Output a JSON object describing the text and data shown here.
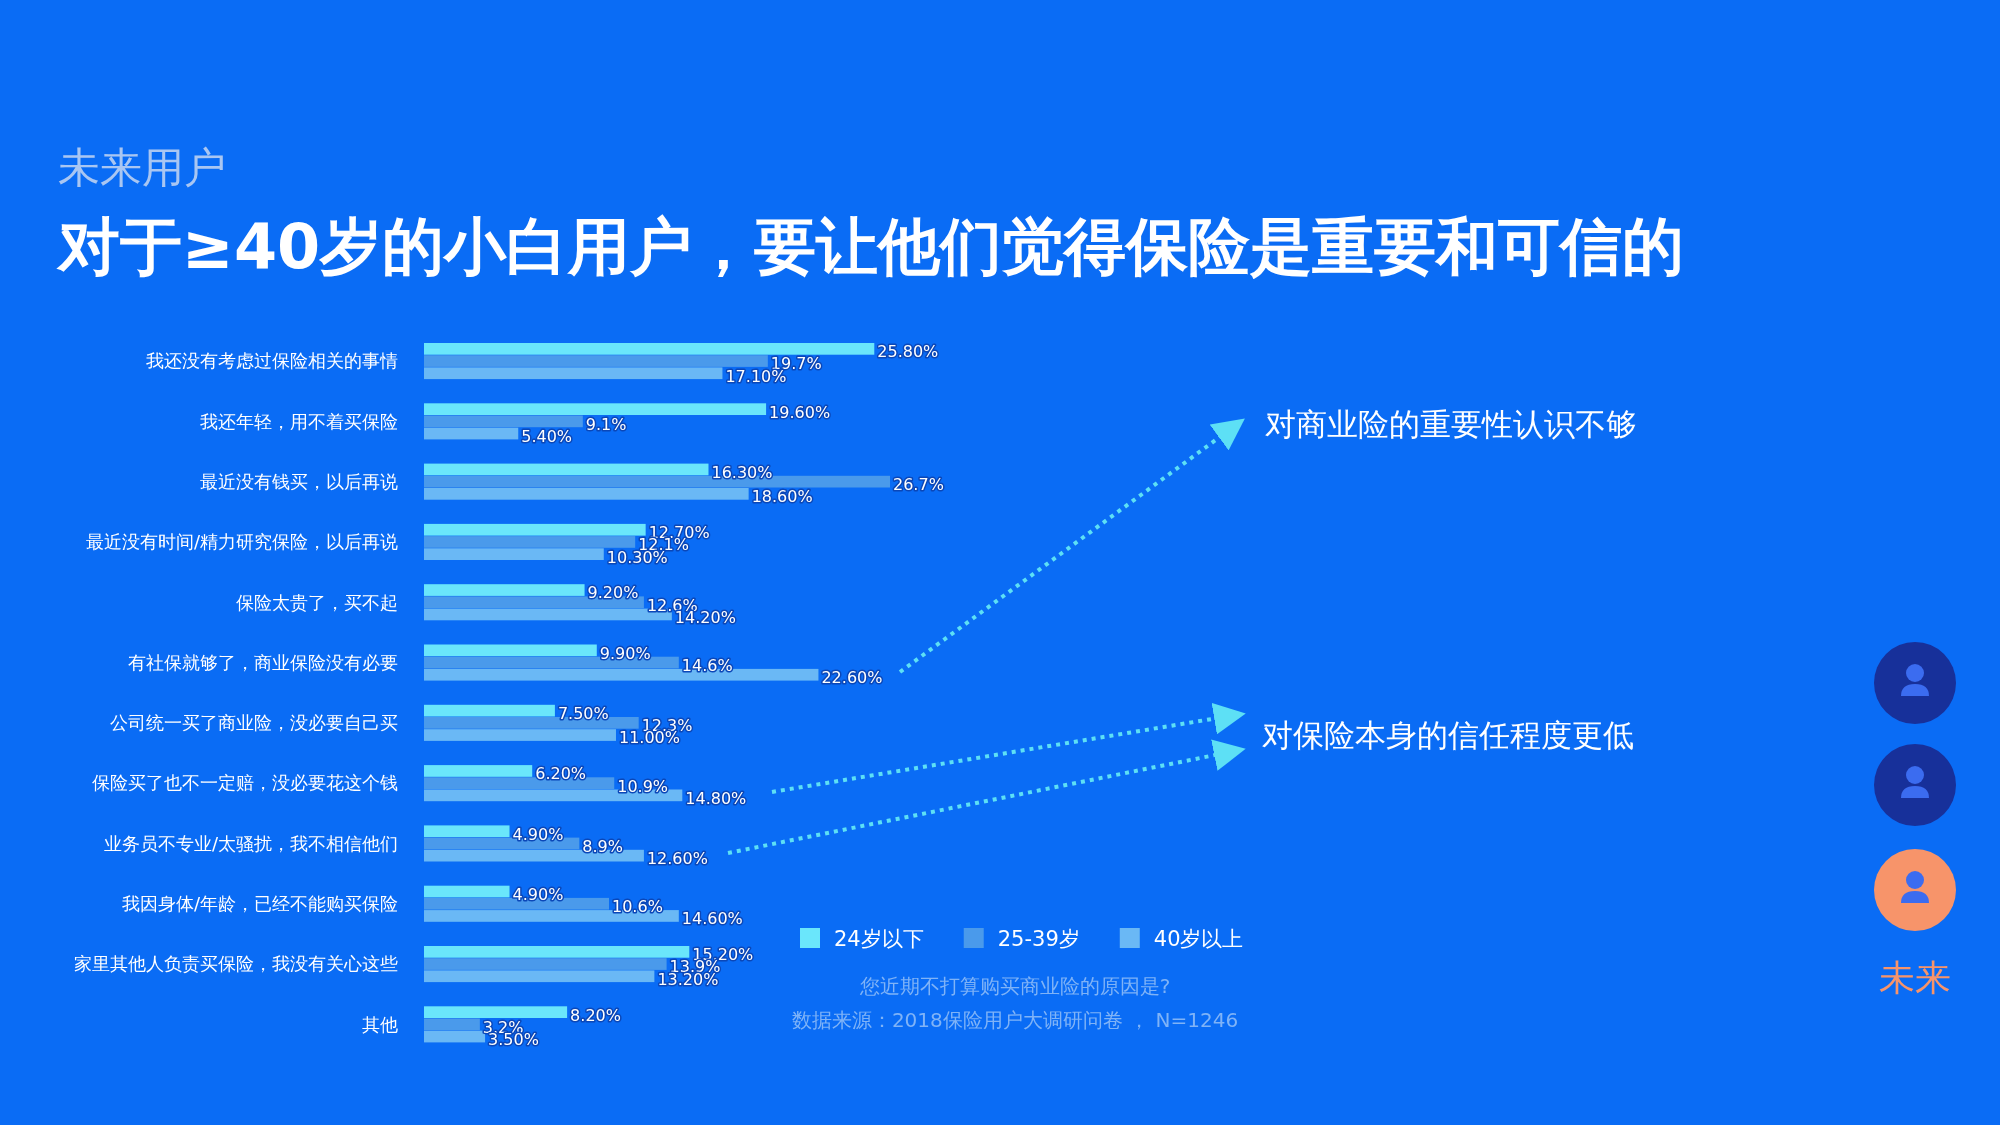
{
  "chart_data": {
    "type": "bar",
    "orientation": "horizontal",
    "title": "对于≥40岁的小白用户，要让他们觉得保险是重要和可信的",
    "subtitle": "未来用户",
    "categories": [
      "我还没有考虑过保险相关的事情",
      "我还年轻，用不着买保险",
      "最近没有钱买，以后再说",
      "最近没有时间/精力研究保险，以后再说",
      "保险太贵了，买不起",
      "有社保就够了，商业保险没有必要",
      "公司统一买了商业险，没必要自己买",
      "保险买了也不一定赔，没必要花这个钱",
      "业务员不专业/太骚扰，我不相信他们",
      "我因身体/年龄，已经不能购买保险",
      "家里其他人负责买保险，我没有关心这些",
      "其他"
    ],
    "series": [
      {
        "name": "24岁以下",
        "color": "#6ae6fb",
        "values": [
          25.8,
          19.6,
          16.3,
          12.7,
          9.2,
          9.9,
          7.5,
          6.2,
          4.9,
          4.9,
          15.2,
          8.2
        ],
        "value_labels": [
          "25.80%",
          "19.60%",
          "16.30%",
          "12.70%",
          "9.20%",
          "9.90%",
          "7.50%",
          "6.20%",
          "4.90%",
          "4.90%",
          "15.20%",
          "8.20%"
        ]
      },
      {
        "name": "25-39岁",
        "color": "#4a9aeb",
        "values": [
          19.7,
          9.1,
          26.7,
          12.1,
          12.6,
          14.6,
          12.3,
          10.9,
          8.9,
          10.6,
          13.9,
          3.2
        ],
        "value_labels": [
          "19.7%",
          "9.1%",
          "26.7%",
          "12.1%",
          "12.6%",
          "14.6%",
          "12.3%",
          "10.9%",
          "8.9%",
          "10.6%",
          "13.9%",
          "3.2%"
        ]
      },
      {
        "name": "40岁以上",
        "color": "#6ab8f5",
        "values": [
          17.1,
          5.4,
          18.6,
          10.3,
          14.2,
          22.6,
          11.0,
          14.8,
          12.6,
          14.6,
          13.2,
          3.5
        ],
        "value_labels": [
          "17.10%",
          "5.40%",
          "18.60%",
          "10.30%",
          "14.20%",
          "22.60%",
          "11.00%",
          "14.80%",
          "12.60%",
          "14.60%",
          "13.20%",
          "3.50%"
        ]
      }
    ],
    "legend": "bottom right",
    "annotations": [
      "对商业险的重要性认识不够",
      "对保险本身的信任程度更低",
      "您近期不打算购买商业险的原因是?",
      "数据来源：2018保险用户大调研问卷 ， N=1246",
      "未来"
    ]
  }
}
